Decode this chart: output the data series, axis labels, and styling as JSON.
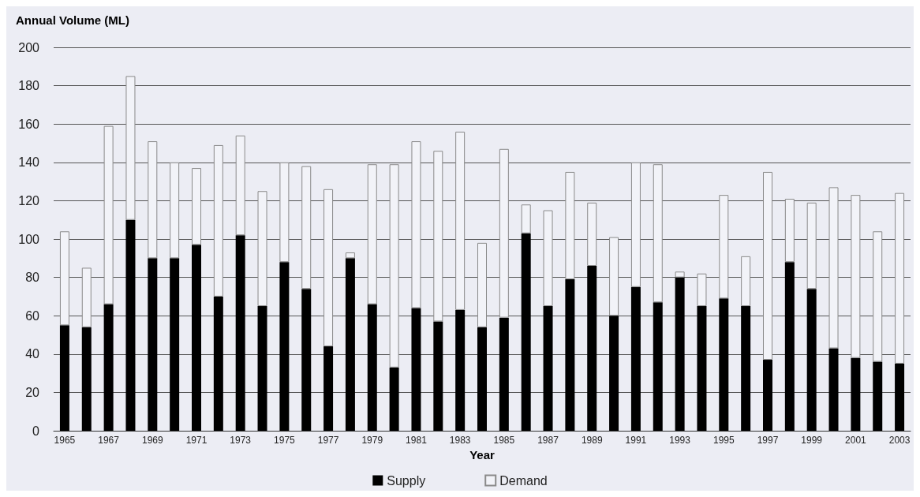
{
  "chart_data": {
    "type": "bar",
    "ylabel": "Annual Volume (ML)",
    "xlabel": "Year",
    "categories": [
      "1965",
      null,
      "1967",
      null,
      "1969",
      null,
      "1971",
      null,
      "1973",
      null,
      "1975",
      null,
      "1977",
      null,
      "1979",
      null,
      "1981",
      null,
      "1983",
      null,
      "1985",
      null,
      "1987",
      null,
      "1989",
      null,
      "1991",
      null,
      "1993",
      null,
      "1995",
      null,
      "1997",
      null,
      "1999",
      null,
      "2001",
      null,
      "2003"
    ],
    "series": [
      {
        "name": "Supply",
        "color": "#000000",
        "values": [
          55,
          54,
          66,
          110,
          90,
          90,
          97,
          70,
          102,
          65,
          88,
          74,
          44,
          90,
          66,
          33,
          64,
          57,
          63,
          54,
          59,
          103,
          65,
          79,
          86,
          60,
          75,
          67,
          80,
          65,
          69,
          65,
          37,
          88,
          74,
          43,
          38,
          36,
          35
        ]
      },
      {
        "name": "Demand",
        "color": "#f2f3f8",
        "values": [
          49,
          31,
          93,
          75,
          61,
          50,
          40,
          79,
          52,
          60,
          52,
          64,
          82,
          3,
          73,
          106,
          87,
          89,
          93,
          44,
          88,
          15,
          50,
          56,
          33,
          41,
          65,
          72,
          3,
          17,
          54,
          26,
          98,
          33,
          45,
          84,
          85,
          68,
          89
        ]
      }
    ],
    "stacked": true,
    "ylim": [
      0,
      200
    ],
    "yticks": [
      0,
      20,
      40,
      60,
      80,
      100,
      120,
      140,
      160,
      180,
      200
    ],
    "grid": "y",
    "legend": "bottom"
  }
}
